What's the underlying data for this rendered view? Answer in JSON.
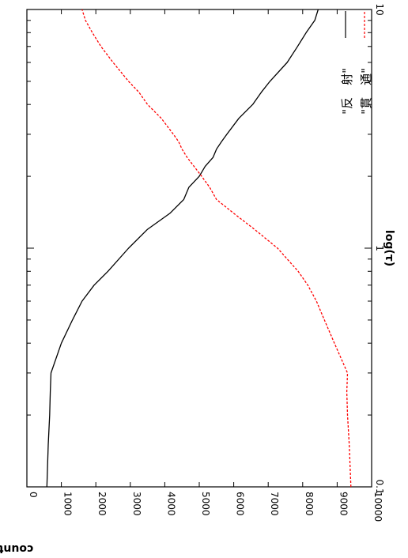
{
  "chart_data": {
    "type": "line",
    "orientation": "rotated 90 degrees clockwise",
    "xlabel": "log(τ)",
    "ylabel": "count",
    "x_scale": "log",
    "xlim": [
      0.1,
      10
    ],
    "ylim": [
      0,
      10000
    ],
    "x_ticks": [
      "0.1",
      "1",
      "10"
    ],
    "y_ticks": [
      "0",
      "1000",
      "2000",
      "3000",
      "4000",
      "5000",
      "6000",
      "7000",
      "8000",
      "9000",
      "10000"
    ],
    "grid": false,
    "legend_position": "top-right",
    "series": [
      {
        "name": "\"反　射\"",
        "color": "#000000",
        "dash": "solid",
        "x": [
          0.1,
          0.15,
          0.2,
          0.25,
          0.3,
          0.4,
          0.5,
          0.6,
          0.7,
          0.8,
          1.0,
          1.2,
          1.4,
          1.6,
          1.8,
          2.0,
          2.2,
          2.4,
          2.6,
          2.8,
          3.0,
          3.5,
          4.0,
          4.5,
          5.0,
          6.0,
          7.0,
          8.0,
          9.0,
          10.0
        ],
        "y": [
          580,
          620,
          660,
          680,
          700,
          1000,
          1320,
          1600,
          1950,
          2350,
          2950,
          3500,
          4150,
          4550,
          4700,
          5000,
          5170,
          5400,
          5500,
          5650,
          5800,
          6150,
          6550,
          6800,
          7050,
          7550,
          7850,
          8100,
          8350,
          8450
        ]
      },
      {
        "name": "\"貫　通\"",
        "color": "#ff0000",
        "dash": "dashed",
        "x": [
          0.1,
          0.15,
          0.2,
          0.25,
          0.3,
          0.4,
          0.5,
          0.6,
          0.7,
          0.8,
          1.0,
          1.2,
          1.4,
          1.6,
          1.8,
          2.0,
          2.2,
          2.4,
          2.6,
          2.8,
          3.0,
          3.5,
          4.0,
          4.5,
          5.0,
          6.0,
          7.0,
          8.0,
          9.0,
          10.0
        ],
        "y": [
          9400,
          9350,
          9300,
          9280,
          9300,
          8920,
          8630,
          8400,
          8150,
          7870,
          7270,
          6600,
          6000,
          5500,
          5300,
          5070,
          4850,
          4650,
          4500,
          4400,
          4250,
          3900,
          3500,
          3250,
          2950,
          2500,
          2150,
          1900,
          1700,
          1600
        ]
      }
    ]
  }
}
